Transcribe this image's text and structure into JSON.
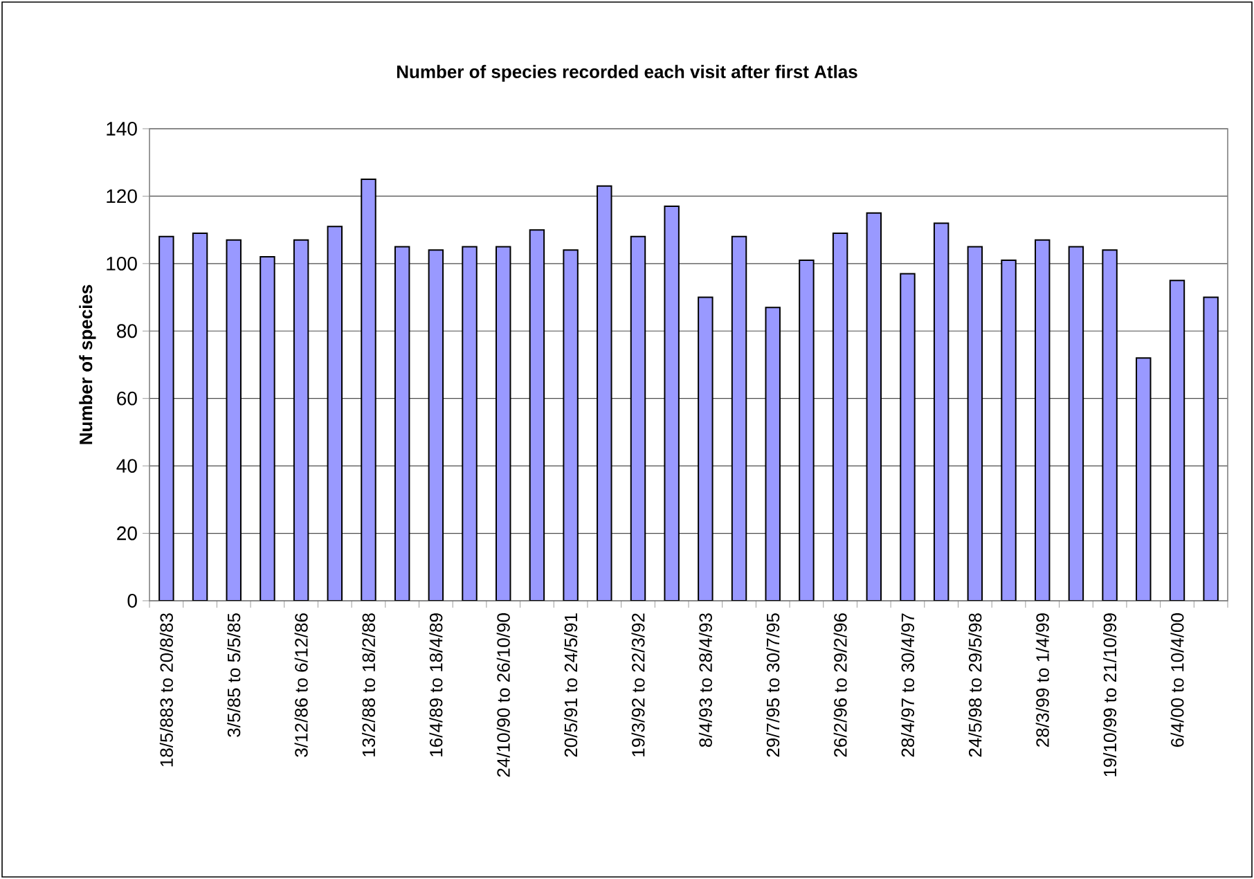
{
  "chart_data": {
    "type": "bar",
    "title": "Number of species recorded each visit after first Atlas",
    "ylabel": "Number of species",
    "categories": [
      "18/5/883 to 20/8/83",
      null,
      "3/5/85 to 5/5/85",
      null,
      "3/12/86 to 6/12/86",
      null,
      "13/2/88 to 18/2/88",
      null,
      "16/4/89 to 18/4/89",
      null,
      "24/10/90 to 26/10/90",
      null,
      "20/5/91 to 24/5/91",
      null,
      "19/3/92 to 22/3/92",
      null,
      "8/4/93 to 28/4/93",
      null,
      "29/7/95 to 30/7/95",
      null,
      "26/2/96 to 29/2/96",
      null,
      "28/4/97 to 30/4/97",
      null,
      "24/5/98 to 29/5/98",
      null,
      "28/3/99 to 1/4/99",
      null,
      "19/10/99 to 21/10/99",
      null,
      "6/4/00 to 10/4/00",
      null
    ],
    "values": [
      108,
      109,
      107,
      102,
      107,
      111,
      125,
      105,
      104,
      105,
      105,
      110,
      104,
      123,
      108,
      117,
      90,
      108,
      87,
      101,
      109,
      115,
      97,
      112,
      105,
      101,
      107,
      105,
      104,
      72,
      95,
      90
    ],
    "color": "#9999ff",
    "ylim": [
      0,
      140
    ],
    "yticks": [
      0,
      20,
      40,
      60,
      80,
      100,
      120,
      140
    ],
    "grid": "y"
  }
}
